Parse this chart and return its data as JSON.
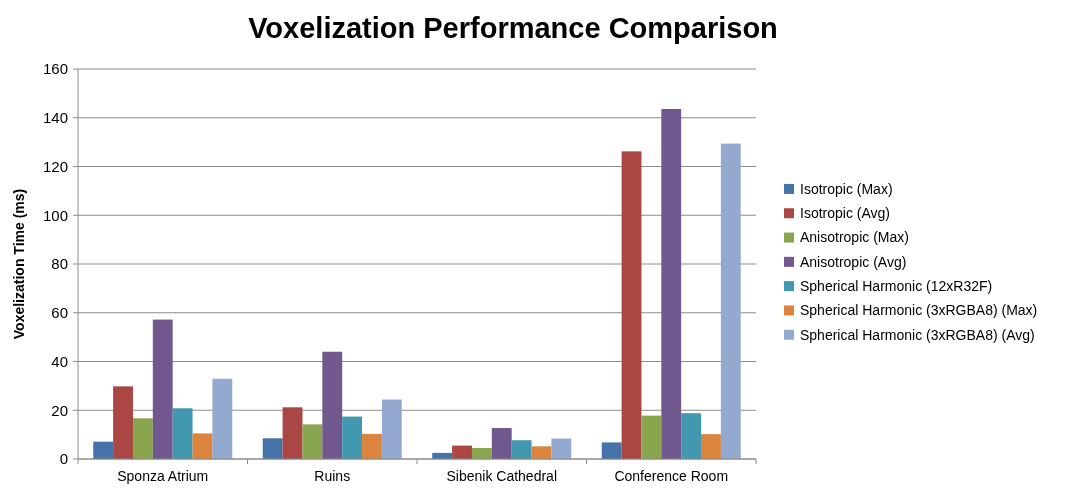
{
  "chart_data": {
    "type": "bar",
    "title": "Voxelization Performance Comparison",
    "ylabel": "Voxelization Time (ms)",
    "categories": [
      "Sponza Atrium",
      "Ruins",
      "Sibenik Cathedral",
      "Conference Room"
    ],
    "series": [
      {
        "name": "Isotropic (Max)",
        "color": "#4572a7",
        "values": [
          7.1,
          8.5,
          2.5,
          6.8
        ]
      },
      {
        "name": "Isotropic (Avg)",
        "color": "#aa4643",
        "values": [
          29.8,
          21.2,
          5.5,
          126.2
        ]
      },
      {
        "name": "Anisotropic (Max)",
        "color": "#89a54e",
        "values": [
          16.7,
          14.2,
          4.5,
          17.8
        ]
      },
      {
        "name": "Anisotropic (Avg)",
        "color": "#71588f",
        "values": [
          57.2,
          44,
          12.7,
          143.6
        ]
      },
      {
        "name": "Spherical Harmonic (12xR32F)",
        "color": "#4198af",
        "values": [
          20.8,
          17.4,
          7.7,
          18.8
        ]
      },
      {
        "name": "Spherical Harmonic (3xRGBA8) (Max)",
        "color": "#db843d",
        "values": [
          10.5,
          10.3,
          5.2,
          10.2
        ]
      },
      {
        "name": "Spherical Harmonic (3xRGBA8) (Avg)",
        "color": "#93a9cf",
        "values": [
          32.9,
          24.4,
          8.4,
          129.4
        ]
      }
    ],
    "ylim": [
      0,
      160
    ],
    "yticks": [
      0,
      20,
      40,
      60,
      80,
      100,
      120,
      140,
      160
    ],
    "grid": "y",
    "legend": "right"
  }
}
